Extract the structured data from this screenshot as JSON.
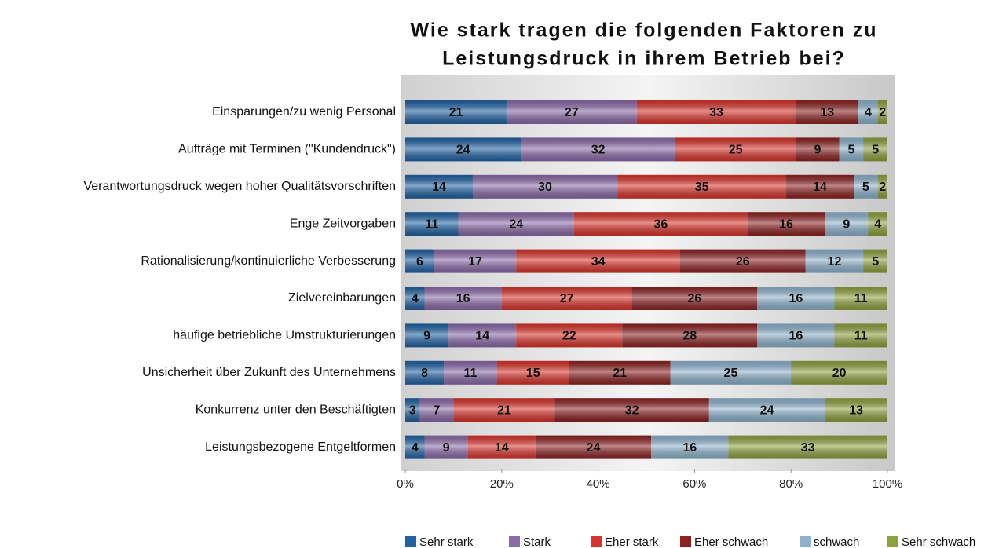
{
  "chart_data": {
    "type": "stacked-bar-horizontal",
    "title": [
      "Wie stark tragen die folgenden Faktoren zu",
      "Leistungsdruck in ihrem Betrieb bei?"
    ],
    "categories": [
      "Einsparungen/zu wenig Personal",
      "Aufträge mit Terminen (\"Kundendruck\")",
      "Verantwortungsdruck wegen hoher Qualitätsvorschriften",
      "Enge Zeitvorgaben",
      "Rationalisierung/kontinuierliche Verbesserung",
      "Zielvereinbarungen",
      "häufige betriebliche Umstrukturierungen",
      "Unsicherheit über Zukunft des Unternehmens",
      "Konkurrenz unter den Beschäftigten",
      "Leistungsbezogene Entgeltformen"
    ],
    "series": [
      {
        "name": "Sehr stark",
        "color": "#2062a3",
        "values": [
          21,
          24,
          14,
          11,
          6,
          4,
          9,
          8,
          3,
          4
        ]
      },
      {
        "name": "Stark",
        "color": "#8a6aa8",
        "values": [
          27,
          32,
          30,
          24,
          17,
          16,
          14,
          11,
          7,
          9
        ]
      },
      {
        "name": "Eher stark",
        "color": "#d9342b",
        "values": [
          33,
          25,
          35,
          36,
          34,
          27,
          22,
          15,
          21,
          14
        ]
      },
      {
        "name": "Eher schwach",
        "color": "#8c2222",
        "values": [
          13,
          9,
          14,
          16,
          26,
          26,
          28,
          21,
          32,
          24
        ]
      },
      {
        "name": "schwach",
        "color": "#8db2cc",
        "values": [
          4,
          5,
          5,
          9,
          12,
          16,
          16,
          25,
          24,
          16
        ]
      },
      {
        "name": "Sehr schwach",
        "color": "#8ea13f",
        "values": [
          2,
          5,
          2,
          4,
          5,
          11,
          11,
          20,
          13,
          33
        ]
      }
    ],
    "xlim": [
      0,
      100
    ],
    "xticks": [
      {
        "value": 0,
        "label": "0%"
      },
      {
        "value": 20,
        "label": "20%"
      },
      {
        "value": 40,
        "label": "40%"
      },
      {
        "value": 60,
        "label": "60%"
      },
      {
        "value": 80,
        "label": "80%"
      },
      {
        "value": 100,
        "label": "100%"
      }
    ]
  }
}
